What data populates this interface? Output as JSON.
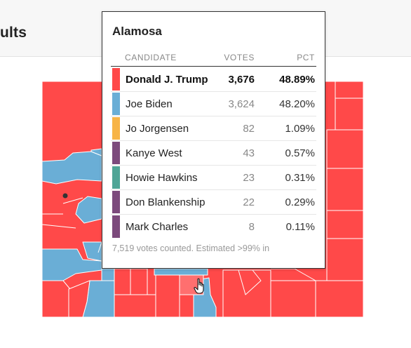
{
  "page": {
    "title_fragment": "ults"
  },
  "colors": {
    "republican": "#ff4949",
    "democrat": "#6aaed6",
    "libertarian": "#f7b447",
    "green": "#4fa596",
    "other": "#7c4a7c"
  },
  "tooltip": {
    "county": "Alamosa",
    "headers": {
      "candidate": "CANDIDATE",
      "votes": "VOTES",
      "pct": "PCT"
    },
    "rows": [
      {
        "candidate": "Donald J. Trump",
        "votes": "3,676",
        "pct": "48.89%",
        "color": "#ff4949",
        "winner": true
      },
      {
        "candidate": "Joe Biden",
        "votes": "3,624",
        "pct": "48.20%",
        "color": "#6aaed6",
        "winner": false
      },
      {
        "candidate": "Jo Jorgensen",
        "votes": "82",
        "pct": "1.09%",
        "color": "#f7b447",
        "winner": false
      },
      {
        "candidate": "Kanye West",
        "votes": "43",
        "pct": "0.57%",
        "color": "#7c4a7c",
        "winner": false
      },
      {
        "candidate": "Howie Hawkins",
        "votes": "23",
        "pct": "0.31%",
        "color": "#4fa596",
        "winner": false
      },
      {
        "candidate": "Don Blankenship",
        "votes": "22",
        "pct": "0.29%",
        "color": "#7c4a7c",
        "winner": false
      },
      {
        "candidate": "Mark Charles",
        "votes": "8",
        "pct": "0.11%",
        "color": "#7c4a7c",
        "winner": false
      }
    ],
    "footer": "7,519 votes counted. Estimated >99% in"
  }
}
